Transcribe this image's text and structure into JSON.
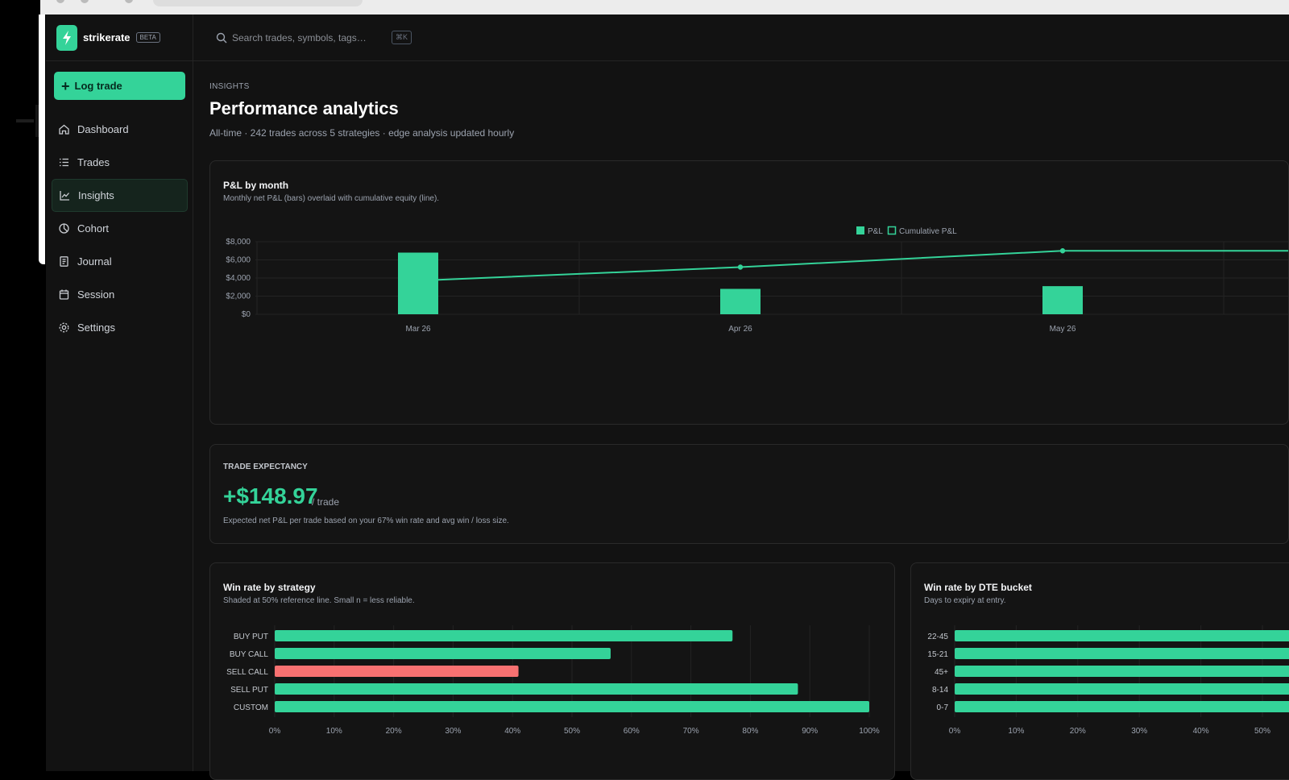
{
  "app": {
    "brand": "strikerate",
    "badge": "BETA",
    "primary_action": "Log trade",
    "search_placeholder": "Search trades, symbols, tags…",
    "search_shortcut": "⌘K",
    "accent": "#34d399",
    "negative": "#f87171"
  },
  "sidebar": {
    "items": [
      {
        "label": "Dashboard",
        "icon": "home-icon",
        "active": false
      },
      {
        "label": "Trades",
        "icon": "list-icon",
        "active": false
      },
      {
        "label": "Insights",
        "icon": "chart-line-icon",
        "active": true
      },
      {
        "label": "Cohort",
        "icon": "pie-icon",
        "active": false
      },
      {
        "label": "Journal",
        "icon": "notebook-icon",
        "active": false
      },
      {
        "label": "Session",
        "icon": "calendar-icon",
        "active": false
      },
      {
        "label": "Settings",
        "icon": "gear-icon",
        "active": false
      }
    ]
  },
  "page": {
    "eyebrow": "INSIGHTS",
    "title": "Performance analytics",
    "subtitle": "All-time · 242 trades across 5 strategies · edge analysis updated hourly"
  },
  "pnl_card": {
    "title": "P&L by month",
    "subtitle": "Monthly net P&L (bars) overlaid with cumulative equity (line)."
  },
  "expectancy": {
    "label": "TRADE EXPECTANCY",
    "value": "+$148.97",
    "unit": "/ trade",
    "note": "Expected net P&L per trade based on your 67% win rate and avg win / loss size."
  },
  "strategy_card": {
    "title": "Win rate by strategy",
    "subtitle": "Shaded at 50% reference line. Small n = less reliable."
  },
  "dte_card": {
    "title": "Win rate by DTE bucket",
    "subtitle": "Days to expiry at entry."
  },
  "chart_data": [
    {
      "type": "bar",
      "categories": [
        "Mar 26",
        "Apr 26",
        "May 26"
      ],
      "series": [
        {
          "name": "P&L",
          "values": [
            6800,
            2800,
            3100
          ]
        },
        {
          "name": "Cumulative P&L",
          "values": [
            3800,
            5200,
            7000
          ]
        }
      ],
      "title": "P&L by month",
      "ylim": [
        0,
        8000
      ],
      "yticks": [
        "$8,000",
        "$6,000",
        "$4,000",
        "$2,000",
        "$0"
      ],
      "legend": "top-center",
      "grid": true
    },
    {
      "type": "bar",
      "orientation": "horizontal",
      "categories": [
        "BUY PUT",
        "BUY CALL",
        "SELL CALL",
        "SELL PUT",
        "CUSTOM"
      ],
      "values": [
        77,
        56.5,
        41,
        88,
        100
      ],
      "colors": [
        "#34d399",
        "#34d399",
        "#f87171",
        "#34d399",
        "#34d399"
      ],
      "title": "Win rate by strategy",
      "xlim": [
        0,
        100
      ],
      "xticks": [
        "0%",
        "10%",
        "20%",
        "30%",
        "40%",
        "50%",
        "60%",
        "70%",
        "80%",
        "90%",
        "100%"
      ],
      "grid": true
    },
    {
      "type": "bar",
      "orientation": "horizontal",
      "categories": [
        "22-45",
        "15-21",
        "45+",
        "8-14",
        "0-7"
      ],
      "values": [
        100,
        100,
        100,
        100,
        100
      ],
      "title": "Win rate by DTE bucket",
      "xlim": [
        0,
        100
      ],
      "xticks": [
        "0%",
        "10%",
        "20%",
        "30%",
        "40%",
        "50%"
      ],
      "grid": true
    }
  ]
}
